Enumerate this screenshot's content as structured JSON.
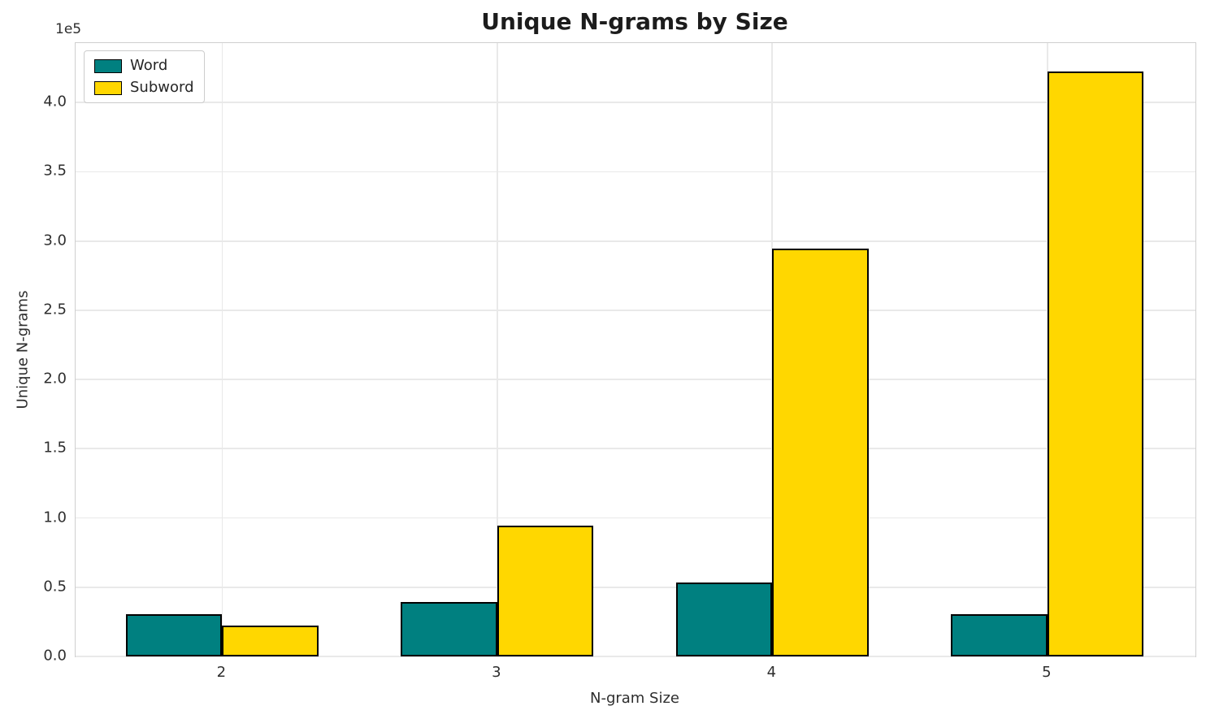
{
  "chart_data": {
    "type": "bar",
    "title": "Unique N-grams by Size",
    "xlabel": "N-gram Size",
    "ylabel": "Unique N-grams",
    "offset_label": "1e5",
    "categories": [
      "2",
      "3",
      "4",
      "5"
    ],
    "series": [
      {
        "name": "Word",
        "color": "#008080",
        "values": [
          30000,
          39000,
          53000,
          30000
        ]
      },
      {
        "name": "Subword",
        "color": "#FFD700",
        "values": [
          22000,
          94000,
          294000,
          422000
        ]
      }
    ],
    "bar_edge_color": "#000000",
    "bar_width_units": 0.35,
    "ylim": [
      0,
      443000
    ],
    "xlim": [
      1.467,
      5.538
    ],
    "yticks": [
      0,
      50000,
      100000,
      150000,
      200000,
      250000,
      300000,
      350000,
      400000
    ],
    "ytick_labels": [
      "0.0",
      "0.5",
      "1.0",
      "1.5",
      "2.0",
      "2.5",
      "3.0",
      "3.5",
      "4.0"
    ],
    "grid": true,
    "legend_position": "upper left"
  }
}
